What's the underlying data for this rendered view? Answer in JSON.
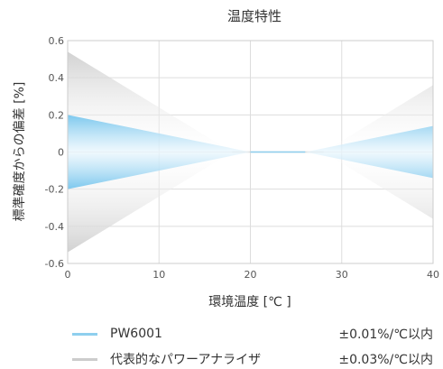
{
  "chart_data": {
    "type": "area",
    "title": "温度特性",
    "xlabel": "環境温度 [℃ ]",
    "ylabel": "標準確度からの偏差 [%]",
    "xlim": [
      0,
      40
    ],
    "ylim": [
      -0.6,
      0.6
    ],
    "x_ticks": [
      "0",
      "10",
      "20",
      "30",
      "40"
    ],
    "y_ticks": [
      "0.6",
      "0.4",
      "0.2",
      "0",
      "-0.2",
      "-0.4",
      "-0.6"
    ],
    "grid": true,
    "legend_position": "bottom",
    "series": [
      {
        "name": "PW6001",
        "spec": "±0.01%/℃以内",
        "color": "#8ecfee",
        "x": [
          0,
          20,
          26,
          40
        ],
        "upper": [
          0.2,
          0,
          0,
          0.14
        ],
        "lower": [
          -0.2,
          0,
          0,
          -0.14
        ]
      },
      {
        "name": "代表的なパワーアナライザ",
        "spec": "±0.03%/℃以内",
        "color": "#cccccc",
        "x": [
          0,
          18,
          28,
          40
        ],
        "upper": [
          0.54,
          0,
          0,
          0.36
        ],
        "lower": [
          -0.54,
          0,
          0,
          -0.36
        ]
      }
    ]
  }
}
